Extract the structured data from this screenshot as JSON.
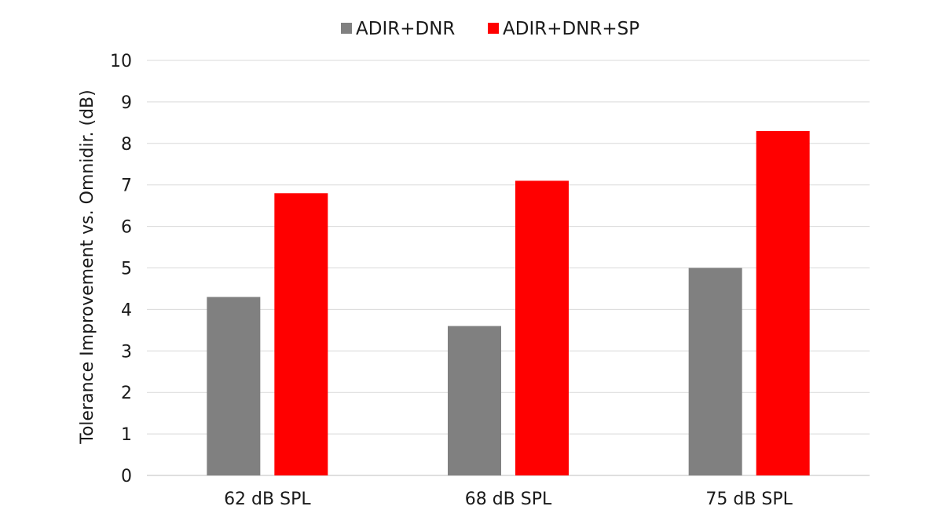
{
  "chart_data": {
    "type": "bar",
    "title": "",
    "xlabel": "",
    "ylabel": "Tolerance Improvement vs. Omnidir. (dB)",
    "categories": [
      "62 dB SPL",
      "68 dB SPL",
      "75 dB SPL"
    ],
    "series": [
      {
        "name": "ADIR+DNR",
        "color": "#808080",
        "values": [
          4.3,
          3.6,
          5.0
        ]
      },
      {
        "name": "ADIR+DNR+SP",
        "color": "#ff0000",
        "values": [
          6.8,
          7.1,
          8.3
        ]
      }
    ],
    "ylim": [
      0,
      10
    ],
    "yticks": [
      "0",
      "1",
      "2",
      "3",
      "4",
      "5",
      "6",
      "7",
      "8",
      "9",
      "10"
    ],
    "grid": true,
    "legend_position": "top-center"
  }
}
